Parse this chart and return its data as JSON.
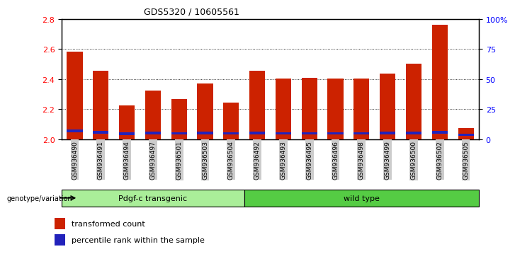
{
  "title": "GDS5320 / 10605561",
  "samples": [
    "GSM936490",
    "GSM936491",
    "GSM936494",
    "GSM936497",
    "GSM936501",
    "GSM936503",
    "GSM936504",
    "GSM936492",
    "GSM936493",
    "GSM936495",
    "GSM936496",
    "GSM936498",
    "GSM936499",
    "GSM936500",
    "GSM936502",
    "GSM936505"
  ],
  "red_values": [
    2.585,
    2.455,
    2.225,
    2.325,
    2.265,
    2.37,
    2.245,
    2.455,
    2.405,
    2.41,
    2.405,
    2.405,
    2.435,
    2.505,
    2.76,
    2.075
  ],
  "blue_heights": [
    0.018,
    0.016,
    0.016,
    0.016,
    0.016,
    0.016,
    0.016,
    0.016,
    0.016,
    0.016,
    0.016,
    0.016,
    0.016,
    0.016,
    0.018,
    0.014
  ],
  "blue_bottoms": [
    2.048,
    2.038,
    2.028,
    2.034,
    2.032,
    2.034,
    2.032,
    2.034,
    2.032,
    2.032,
    2.032,
    2.032,
    2.034,
    2.034,
    2.038,
    2.022
  ],
  "group1_label": "Pdgf-c transgenic",
  "group2_label": "wild type",
  "group1_count": 7,
  "group2_count": 9,
  "genotype_label": "genotype/variation",
  "legend1": "transformed count",
  "legend2": "percentile rank within the sample",
  "ylim_left": [
    2.0,
    2.8
  ],
  "ylim_right": [
    0,
    100
  ],
  "right_ticks": [
    0,
    25,
    50,
    75,
    100
  ],
  "right_tick_labels": [
    "0",
    "25",
    "50",
    "75",
    "100%"
  ],
  "left_ticks": [
    2.0,
    2.2,
    2.4,
    2.6,
    2.8
  ],
  "bar_color": "#cc2200",
  "blue_color": "#2222bb",
  "group1_color": "#aaee99",
  "group2_color": "#55cc44",
  "tick_bg": "#cccccc",
  "bar_width": 0.6
}
